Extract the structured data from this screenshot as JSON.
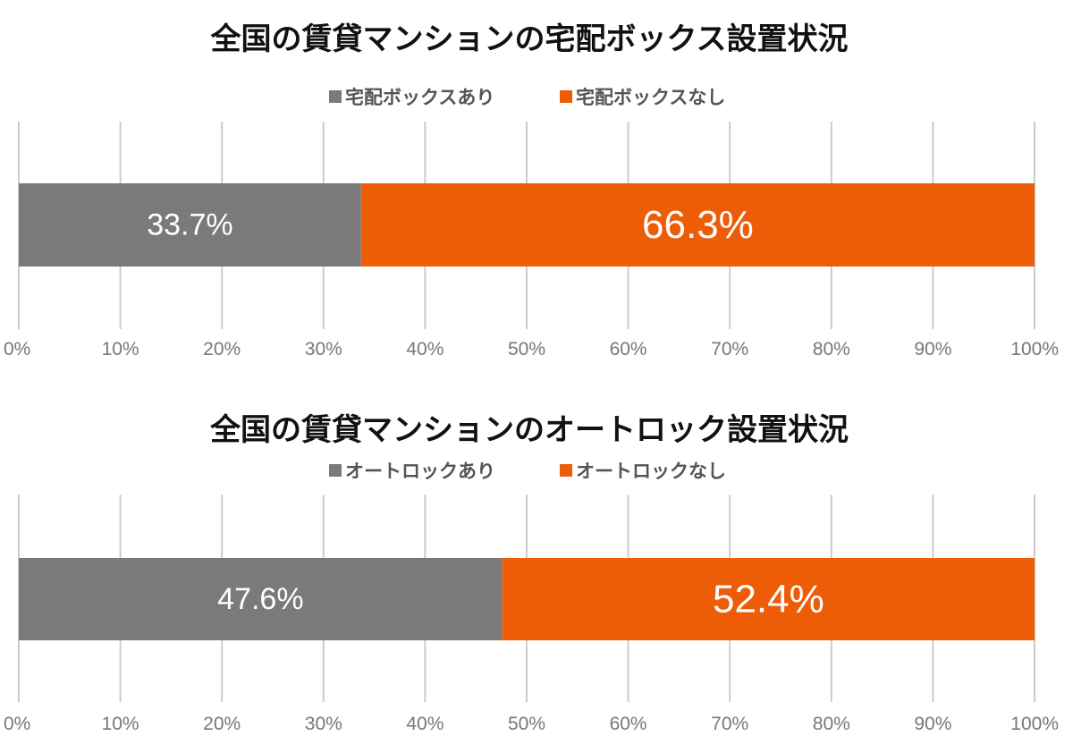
{
  "chart_data": [
    {
      "type": "bar",
      "orientation": "horizontal-stacked",
      "title": "全国の賃貸マンションの宅配ボックス設置状況",
      "legend_position": "top",
      "grid": true,
      "xlim": [
        0,
        100
      ],
      "series": [
        {
          "name": "宅配ボックスあり",
          "values": [
            33.7
          ],
          "label": "33.7%",
          "color": "#7b797a"
        },
        {
          "name": "宅配ボックスなし",
          "values": [
            66.3
          ],
          "label": "66.3%",
          "color": "#ed5c06"
        }
      ],
      "ticks": [
        "0%",
        "10%",
        "20%",
        "30%",
        "40%",
        "50%",
        "60%",
        "70%",
        "80%",
        "90%",
        "100%"
      ]
    },
    {
      "type": "bar",
      "orientation": "horizontal-stacked",
      "title": "全国の賃貸マンションのオートロック設置状況",
      "legend_position": "top",
      "grid": true,
      "xlim": [
        0,
        100
      ],
      "series": [
        {
          "name": "オートロックあり",
          "values": [
            47.6
          ],
          "label": "47.6%",
          "color": "#7b797a"
        },
        {
          "name": "オートロックなし",
          "values": [
            52.4
          ],
          "label": "52.4%",
          "color": "#ed5c06"
        }
      ],
      "ticks": [
        "0%",
        "10%",
        "20%",
        "30%",
        "40%",
        "50%",
        "60%",
        "70%",
        "80%",
        "90%",
        "100%"
      ]
    }
  ]
}
